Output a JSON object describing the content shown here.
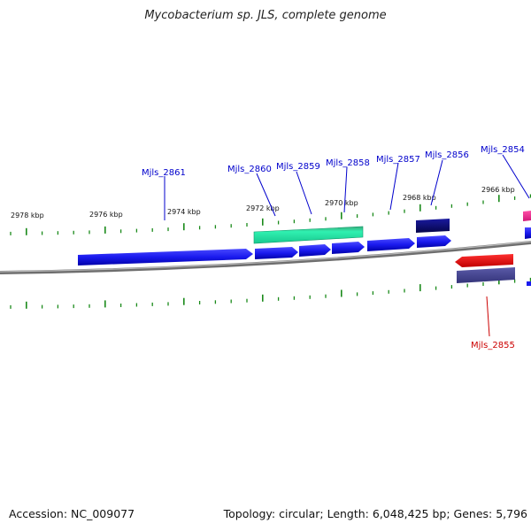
{
  "title": "Mycobacterium sp. JLS, complete genome",
  "footer": {
    "accession": "Accession: NC_009077",
    "summary": "Topology: circular; Length: 6,048,425 bp; Genes: 5,796"
  },
  "colors": {
    "gene_blue": "#1a1aee",
    "gene_teal": "#22e6a6",
    "gene_navy": "#0c0c70",
    "gene_red": "#ee1111",
    "gene_slate": "#4a4a90",
    "gene_pink": "#f02890",
    "label_blue": "#0000cc",
    "label_red": "#cc0000",
    "tick_green": "#1a8a1a",
    "backbone": "#888888"
  },
  "kbp_labels": [
    "2978 kbp",
    "2976 kbp",
    "2974 kbp",
    "2972 kbp",
    "2970 kbp",
    "2968 kbp",
    "2966 kbp"
  ],
  "gene_labels": {
    "upper": [
      "Mjls_2861",
      "Mjls_2860",
      "Mjls_2859",
      "Mjls_2858",
      "Mjls_2857",
      "Mjls_2856",
      "Mjls_2854"
    ],
    "lower": [
      "Mjls_2855"
    ]
  }
}
